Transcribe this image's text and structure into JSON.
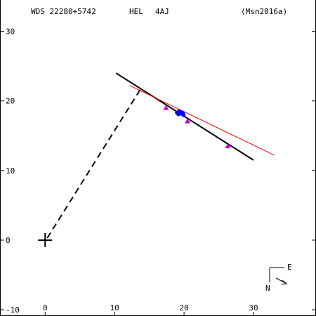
{
  "header": {
    "designation": "WDS 22280+5742",
    "discoverer": "HEL",
    "pair": "4AJ",
    "reference": "(Msn2016a)"
  },
  "compass": {
    "east_label": "E",
    "north_label": "N"
  },
  "colors": {
    "axes": "#000000",
    "black_orbit": "#000000",
    "red_orbit": "#ff0000",
    "micrometer_obs": "#cc00cc",
    "speckle_obs": "#0000ff"
  },
  "chart_data": {
    "type": "scatter",
    "title": "",
    "xlabel": "",
    "ylabel": "",
    "xlim": [
      -6.5,
      39
    ],
    "ylim": [
      -10.9,
      34.5
    ],
    "x_ticks": [
      0,
      10,
      20,
      30
    ],
    "y_ticks": [
      -10,
      0,
      10,
      20,
      30
    ],
    "tick_labels_x": [
      "0",
      "10",
      "20",
      "30"
    ],
    "tick_labels_y": [
      "-10",
      "0",
      "10",
      "20",
      "30"
    ],
    "grid": false,
    "primary": {
      "x": 0,
      "y": 0,
      "marker": "plus"
    },
    "series": [
      {
        "kind": "line",
        "color": "#000000",
        "points": [
          [
            10.2,
            24.0
          ],
          [
            30.0,
            11.5
          ]
        ]
      },
      {
        "kind": "line",
        "color": "#ff0000",
        "points": [
          [
            12.2,
            22.2
          ],
          [
            33.0,
            12.2
          ]
        ]
      },
      {
        "kind": "dashed",
        "color": "#000000",
        "points": [
          [
            0.3,
            0.3
          ],
          [
            13.8,
            21.8
          ]
        ]
      },
      {
        "kind": "triangle",
        "color": "#cc00cc",
        "points": [
          [
            17.4,
            19.0
          ],
          [
            20.5,
            17.1
          ],
          [
            26.3,
            13.5
          ]
        ]
      },
      {
        "kind": "dot",
        "color": "#0000ff",
        "points": [
          [
            19.0,
            18.3
          ],
          [
            19.3,
            18.5
          ],
          [
            19.6,
            18.2
          ],
          [
            19.9,
            18.0
          ],
          [
            19.5,
            18.4
          ],
          [
            19.2,
            18.1
          ],
          [
            19.8,
            18.3
          ]
        ]
      }
    ]
  }
}
